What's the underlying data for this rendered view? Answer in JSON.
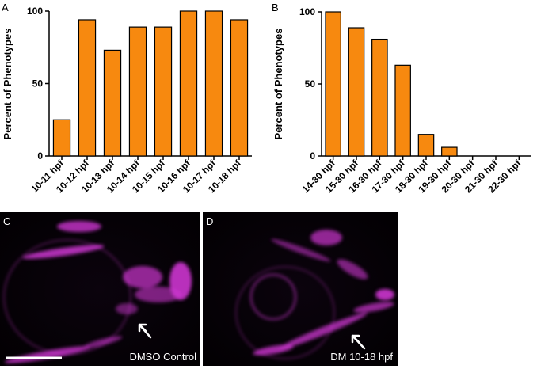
{
  "chart_data": [
    {
      "panel": "A",
      "type": "bar",
      "ylabel": "Percent of Phenotypes",
      "ylim": [
        0,
        100
      ],
      "yticks": [
        0,
        50,
        100
      ],
      "categories": [
        "10-11 hpf",
        "10-12 hpf",
        "10-13 hpf",
        "10-14 hpf",
        "10-15 hpf",
        "10-16 hpf",
        "10-17 hpf",
        "10-18 hpf"
      ],
      "values": [
        25,
        94,
        73,
        89,
        89,
        100,
        100,
        94
      ],
      "bar_color": "#F7890F"
    },
    {
      "panel": "B",
      "type": "bar",
      "ylabel": "Percent of Phenotypes",
      "ylim": [
        0,
        100
      ],
      "yticks": [
        0,
        50,
        100
      ],
      "categories": [
        "14-30 hpf",
        "15-30 hpf",
        "16-30 hpf",
        "17-30 hpf",
        "18-30 hpf",
        "19-30 hpf",
        "20-30 hpf",
        "21-30 hpf",
        "22-30 hpf"
      ],
      "values": [
        100,
        89,
        81,
        63,
        15,
        6,
        0,
        0,
        0
      ],
      "bar_color": "#F7890F"
    }
  ],
  "images": [
    {
      "panel": "C",
      "label": "DMSO Control",
      "stain_color": "#E23CE6"
    },
    {
      "panel": "D",
      "label": "DM 10-18 hpf",
      "stain_color": "#E23CE6"
    }
  ]
}
